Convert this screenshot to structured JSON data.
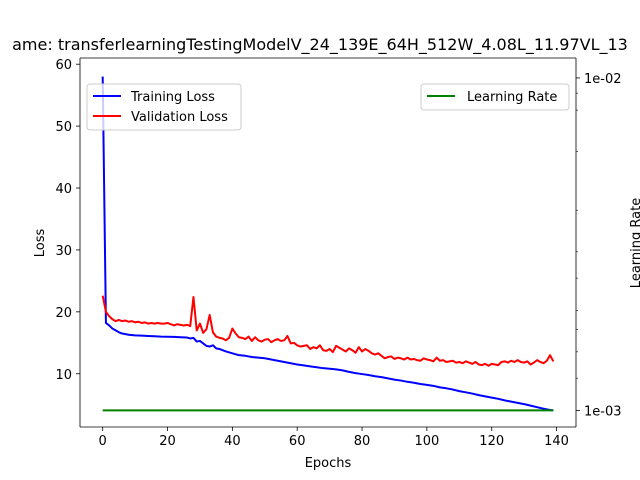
{
  "chart_data": {
    "type": "line",
    "title": "ame: transferlearningTestingModelV_24_139E_64H_512W_4.08L_11.97VL_13",
    "xlabel": "Epochs",
    "ylabel": "Loss",
    "y2label": "Learning Rate",
    "xlim": [
      -7,
      146
    ],
    "ylim": [
      1.4,
      61.0
    ],
    "y2lim_log10": [
      -3.05,
      -1.94
    ],
    "y2scale": "log",
    "xticks": [
      0,
      20,
      40,
      60,
      80,
      100,
      120,
      140
    ],
    "xtick_labels": [
      "0",
      "20",
      "40",
      "60",
      "80",
      "100",
      "120",
      "140"
    ],
    "yticks": [
      10,
      20,
      30,
      40,
      50,
      60
    ],
    "ytick_labels": [
      "10",
      "20",
      "30",
      "40",
      "50",
      "60"
    ],
    "y2ticks_log10": [
      -3,
      -2
    ],
    "y2tick_labels": [
      "1e-03",
      "1e-02"
    ],
    "y2_minor_ticks_log10": [
      -2.9031,
      -2.8239,
      -2.757,
      -2.699,
      -2.6021,
      -2.5229,
      -2.3979,
      -2.2218,
      -2.0969,
      -2.0458
    ],
    "grid": false,
    "legends": [
      {
        "placement": "upper-left",
        "entries": [
          "Training Loss",
          "Validation Loss"
        ]
      },
      {
        "placement": "upper-right",
        "entries": [
          "Learning Rate"
        ]
      }
    ],
    "series": [
      {
        "name": "Training Loss",
        "axis": "left",
        "color": "#0000ff",
        "x": [
          0,
          1,
          2,
          3,
          4,
          5,
          6,
          7,
          8,
          10,
          12,
          14,
          16,
          18,
          20,
          22,
          24,
          26,
          27,
          28,
          29,
          30,
          31,
          32,
          33,
          34,
          35,
          36,
          38,
          40,
          42,
          44,
          46,
          48,
          50,
          52,
          54,
          56,
          58,
          60,
          62,
          64,
          66,
          68,
          70,
          72,
          74,
          76,
          78,
          80,
          82,
          84,
          86,
          88,
          90,
          92,
          94,
          96,
          98,
          100,
          102,
          104,
          106,
          108,
          110,
          112,
          114,
          116,
          118,
          120,
          122,
          124,
          126,
          128,
          130,
          132,
          134,
          136,
          138,
          139
        ],
        "y": [
          58.0,
          18.2,
          17.8,
          17.3,
          17.0,
          16.7,
          16.5,
          16.4,
          16.3,
          16.2,
          16.15,
          16.1,
          16.05,
          16.0,
          15.98,
          15.95,
          15.9,
          15.85,
          15.7,
          15.8,
          15.2,
          15.3,
          14.9,
          14.5,
          14.4,
          14.6,
          14.1,
          14.0,
          13.6,
          13.3,
          13.0,
          12.9,
          12.7,
          12.6,
          12.5,
          12.3,
          12.1,
          11.9,
          11.7,
          11.5,
          11.35,
          11.2,
          11.05,
          10.9,
          10.8,
          10.7,
          10.55,
          10.3,
          10.1,
          9.95,
          9.8,
          9.6,
          9.45,
          9.25,
          9.05,
          8.9,
          8.7,
          8.55,
          8.35,
          8.2,
          8.05,
          7.8,
          7.65,
          7.45,
          7.2,
          7.0,
          6.8,
          6.55,
          6.35,
          6.15,
          5.95,
          5.7,
          5.5,
          5.3,
          5.1,
          4.85,
          4.6,
          4.35,
          4.15,
          4.08
        ]
      },
      {
        "name": "Validation Loss",
        "axis": "left",
        "color": "#ff0000",
        "x": [
          0,
          1,
          2,
          3,
          4,
          5,
          6,
          7,
          8,
          9,
          10,
          11,
          12,
          13,
          14,
          15,
          16,
          17,
          18,
          19,
          20,
          21,
          22,
          23,
          24,
          25,
          26,
          27,
          28,
          29,
          30,
          31,
          32,
          33,
          34,
          35,
          36,
          37,
          38,
          39,
          40,
          41,
          42,
          43,
          44,
          45,
          46,
          47,
          48,
          49,
          50,
          51,
          52,
          53,
          54,
          55,
          56,
          57,
          58,
          59,
          60,
          61,
          62,
          63,
          64,
          65,
          66,
          67,
          68,
          69,
          70,
          71,
          72,
          73,
          74,
          75,
          76,
          77,
          78,
          79,
          80,
          81,
          82,
          83,
          84,
          85,
          86,
          87,
          88,
          89,
          90,
          91,
          92,
          93,
          94,
          95,
          96,
          97,
          98,
          99,
          100,
          101,
          102,
          103,
          104,
          105,
          106,
          107,
          108,
          109,
          110,
          111,
          112,
          113,
          114,
          115,
          116,
          117,
          118,
          119,
          120,
          121,
          122,
          123,
          124,
          125,
          126,
          127,
          128,
          129,
          130,
          131,
          132,
          133,
          134,
          135,
          136,
          137,
          138,
          139
        ],
        "y": [
          22.6,
          20.0,
          19.3,
          18.8,
          18.5,
          18.7,
          18.5,
          18.6,
          18.4,
          18.5,
          18.3,
          18.4,
          18.2,
          18.3,
          18.1,
          18.2,
          18.1,
          18.2,
          18.1,
          18.1,
          18.2,
          18.0,
          17.8,
          18.0,
          17.9,
          17.8,
          17.9,
          17.7,
          22.4,
          17.0,
          18.1,
          16.6,
          17.2,
          19.5,
          16.7,
          16.0,
          15.8,
          15.7,
          15.4,
          15.8,
          17.3,
          16.5,
          15.9,
          15.8,
          15.6,
          16.0,
          15.3,
          15.9,
          15.4,
          15.2,
          15.5,
          15.6,
          15.1,
          15.4,
          15.6,
          15.3,
          15.4,
          16.1,
          14.9,
          15.0,
          14.6,
          14.4,
          14.5,
          14.6,
          14.0,
          14.3,
          14.1,
          14.6,
          13.8,
          13.7,
          14.0,
          13.5,
          14.5,
          14.2,
          13.9,
          13.6,
          14.1,
          13.8,
          13.4,
          14.3,
          13.6,
          14.0,
          13.7,
          13.3,
          13.1,
          13.3,
          12.9,
          12.5,
          12.7,
          12.8,
          12.4,
          12.6,
          12.5,
          12.3,
          12.6,
          12.3,
          12.4,
          12.2,
          12.1,
          12.5,
          12.3,
          12.2,
          12.0,
          12.6,
          12.1,
          12.2,
          11.9,
          12.0,
          12.1,
          11.8,
          11.9,
          11.7,
          12.0,
          11.8,
          11.6,
          11.9,
          11.5,
          11.4,
          11.6,
          11.3,
          11.6,
          11.5,
          11.4,
          11.9,
          12.0,
          11.8,
          12.1,
          11.9,
          12.2,
          11.9,
          11.8,
          12.0,
          11.5,
          11.8,
          12.2,
          11.9,
          11.7,
          12.1,
          13.0,
          12.0
        ]
      },
      {
        "name": "Learning Rate",
        "axis": "right",
        "color": "#008000",
        "x": [
          0,
          139
        ],
        "y": [
          0.001,
          0.001
        ]
      }
    ]
  }
}
